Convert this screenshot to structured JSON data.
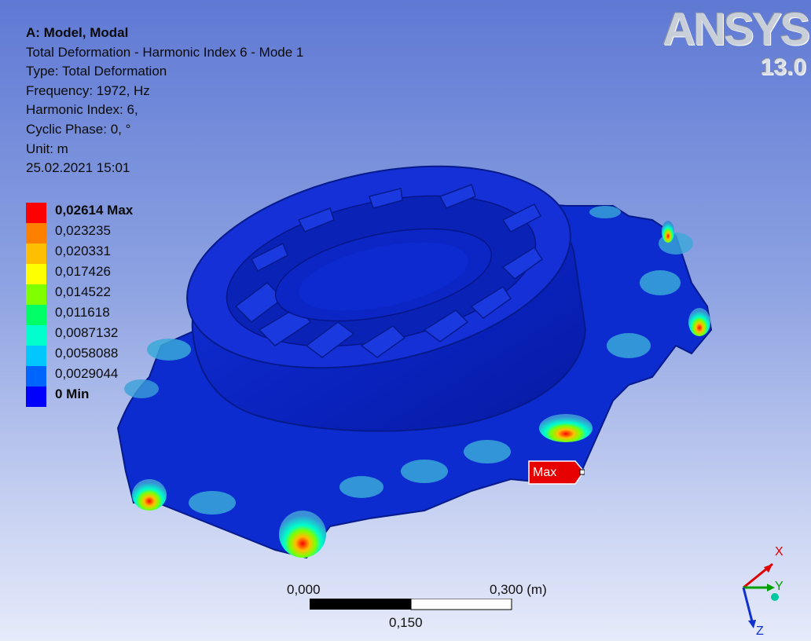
{
  "info": {
    "title": "A: Model, Modal",
    "result": "Total Deformation - Harmonic Index 6 - Mode 1",
    "type": "Type: Total Deformation",
    "frequency": "Frequency: 1972, Hz",
    "harmonic_index": "Harmonic Index: 6,",
    "cyclic_phase": "Cyclic Phase: 0, °",
    "unit": "Unit: m",
    "timestamp": "25.02.2021 15:01"
  },
  "legend": {
    "items": [
      {
        "label": "0,02614 Max",
        "color": "#ff0000"
      },
      {
        "label": "0,023235",
        "color": "#ff7f00"
      },
      {
        "label": "0,020331",
        "color": "#ffbf00"
      },
      {
        "label": "0,017426",
        "color": "#ffff00"
      },
      {
        "label": "0,014522",
        "color": "#7fff00"
      },
      {
        "label": "0,011618",
        "color": "#00ff66"
      },
      {
        "label": "0,0087132",
        "color": "#00ffcc"
      },
      {
        "label": "0,0058088",
        "color": "#00c8ff"
      },
      {
        "label": "0,0029044",
        "color": "#0064ff"
      },
      {
        "label": "0 Min",
        "color": "#0000ff"
      }
    ]
  },
  "max_marker": {
    "label": "Max"
  },
  "logo": {
    "name": "ANSYS",
    "version": "13.0"
  },
  "scale": {
    "left": "0,000",
    "right": "0,300 (m)",
    "middle": "0,150"
  },
  "triad": {
    "x": "X",
    "y": "Y",
    "z": "Z"
  }
}
